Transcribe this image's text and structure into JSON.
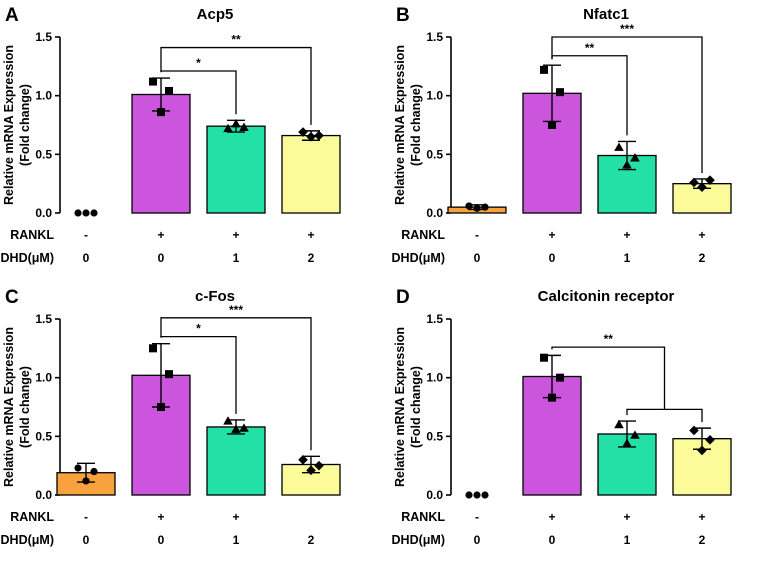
{
  "chart_data": [
    {
      "panel": "A",
      "type": "bar",
      "title": "Acp5",
      "ylabel_line1": "Relative mRNA Expression",
      "ylabel_line2": "(Fold change)",
      "ylim": [
        0,
        1.5
      ],
      "yticks": [
        "0.0",
        "0.5",
        "1.0",
        "1.5"
      ],
      "row_labels": [
        "RANKL",
        "DHD(μM)"
      ],
      "rankl": [
        "-",
        "+",
        "+",
        "+"
      ],
      "dhd": [
        "0",
        "0",
        "1",
        "2"
      ],
      "colors": [
        "#f7a23c",
        "#cc55dd",
        "#22e0a6",
        "#fbfb99"
      ],
      "values": [
        0.0,
        1.01,
        0.74,
        0.66
      ],
      "errors": [
        0.0,
        0.14,
        0.05,
        0.04
      ],
      "points": [
        [
          0.0,
          0.0,
          0.0
        ],
        [
          1.12,
          0.86,
          1.04
        ],
        [
          0.72,
          0.76,
          0.73
        ],
        [
          0.69,
          0.65,
          0.66
        ]
      ],
      "markers": [
        "circle",
        "square",
        "triangle",
        "diamond"
      ],
      "significance": [
        {
          "type": "pair",
          "from": 1,
          "to": 2,
          "y": 1.21,
          "label": "*"
        },
        {
          "type": "pair",
          "from": 1,
          "to": 3,
          "y": 1.41,
          "label": "**"
        }
      ]
    },
    {
      "panel": "B",
      "type": "bar",
      "title": "Nfatc1",
      "ylabel_line1": "Relative mRNA Expression",
      "ylabel_line2": "(Fold change)",
      "ylim": [
        0,
        1.5
      ],
      "yticks": [
        "0.0",
        "0.5",
        "1.0",
        "1.5"
      ],
      "row_labels": [
        "RANKL",
        "DHD(μM)"
      ],
      "rankl": [
        "-",
        "+",
        "+",
        "+"
      ],
      "dhd": [
        "0",
        "0",
        "1",
        "2"
      ],
      "colors": [
        "#f7a23c",
        "#cc55dd",
        "#22e0a6",
        "#fbfb99"
      ],
      "values": [
        0.05,
        1.02,
        0.49,
        0.25
      ],
      "errors": [
        0.02,
        0.24,
        0.12,
        0.04
      ],
      "points": [
        [
          0.06,
          0.04,
          0.05
        ],
        [
          1.22,
          0.75,
          1.03
        ],
        [
          0.56,
          0.41,
          0.47
        ],
        [
          0.26,
          0.22,
          0.28
        ]
      ],
      "markers": [
        "circle",
        "square",
        "triangle",
        "diamond"
      ],
      "significance": [
        {
          "type": "pair",
          "from": 1,
          "to": 2,
          "y": 1.34,
          "label": "**"
        },
        {
          "type": "pair",
          "from": 1,
          "to": 3,
          "y": 1.5,
          "label": "***"
        }
      ]
    },
    {
      "panel": "C",
      "type": "bar",
      "title": "c-Fos",
      "ylabel_line1": "Relative mRNA Expression",
      "ylabel_line2": "(Fold change)",
      "ylim": [
        0,
        1.5
      ],
      "yticks": [
        "0.0",
        "0.5",
        "1.0",
        "1.5"
      ],
      "row_labels": [
        "RANKL",
        "DHD(μM)"
      ],
      "rankl": [
        "-",
        "+",
        "+",
        ""
      ],
      "dhd": [
        "0",
        "0",
        "1",
        "2"
      ],
      "colors": [
        "#f7a23c",
        "#cc55dd",
        "#22e0a6",
        "#fbfb99"
      ],
      "values": [
        0.19,
        1.02,
        0.58,
        0.26
      ],
      "errors": [
        0.08,
        0.27,
        0.06,
        0.07
      ],
      "points": [
        [
          0.23,
          0.12,
          0.2
        ],
        [
          1.25,
          0.75,
          1.03
        ],
        [
          0.63,
          0.56,
          0.57
        ],
        [
          0.3,
          0.21,
          0.25
        ]
      ],
      "markers": [
        "circle",
        "square",
        "triangle",
        "diamond"
      ],
      "significance": [
        {
          "type": "pair",
          "from": 1,
          "to": 2,
          "y": 1.35,
          "label": "*"
        },
        {
          "type": "pair",
          "from": 1,
          "to": 3,
          "y": 1.51,
          "label": "***"
        }
      ]
    },
    {
      "panel": "D",
      "type": "bar",
      "title": "Calcitonin receptor",
      "ylabel_line1": "Relative mRNA Expression",
      "ylabel_line2": "(Fold change)",
      "ylim": [
        0,
        1.5
      ],
      "yticks": [
        "0.0",
        "0.5",
        "1.0",
        "1.5"
      ],
      "row_labels": [
        "RANKL",
        "DHD(μM)"
      ],
      "rankl": [
        "-",
        "+",
        "+",
        "+"
      ],
      "dhd": [
        "0",
        "0",
        "1",
        "2"
      ],
      "colors": [
        "#f7a23c",
        "#cc55dd",
        "#22e0a6",
        "#fbfb99"
      ],
      "values": [
        0.0,
        1.01,
        0.52,
        0.48
      ],
      "errors": [
        0.0,
        0.18,
        0.11,
        0.09
      ],
      "points": [
        [
          0.0,
          0.0,
          0.0
        ],
        [
          1.17,
          0.83,
          1.0
        ],
        [
          0.6,
          0.44,
          0.51
        ],
        [
          0.55,
          0.38,
          0.47
        ]
      ],
      "markers": [
        "circle",
        "square",
        "triangle",
        "diamond"
      ],
      "significance": [
        {
          "type": "group",
          "from": 1,
          "groupFrom": 2,
          "groupTo": 3,
          "y": 1.26,
          "groupY": 0.73,
          "label": "**"
        }
      ]
    }
  ]
}
